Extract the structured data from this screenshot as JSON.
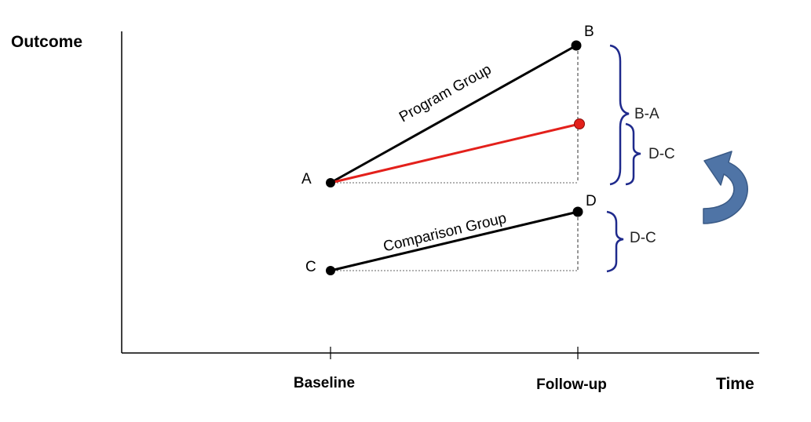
{
  "axes": {
    "y_title": "Outcome",
    "x_title": "Time",
    "x_ticks": [
      "Baseline",
      "Follow-up"
    ]
  },
  "points": {
    "a": "A",
    "b": "B",
    "c": "C",
    "d": "D"
  },
  "lines": {
    "program": "Program Group",
    "comparison": "Comparison Group"
  },
  "braces": {
    "program_change": "B-A",
    "counterfactual_change": "D-C",
    "comparison_change": "D-C"
  },
  "colors": {
    "line": "#000000",
    "counterfactual": "#e3201b",
    "brace": "#1f2a8c",
    "arrow": "#4f74a6"
  }
}
